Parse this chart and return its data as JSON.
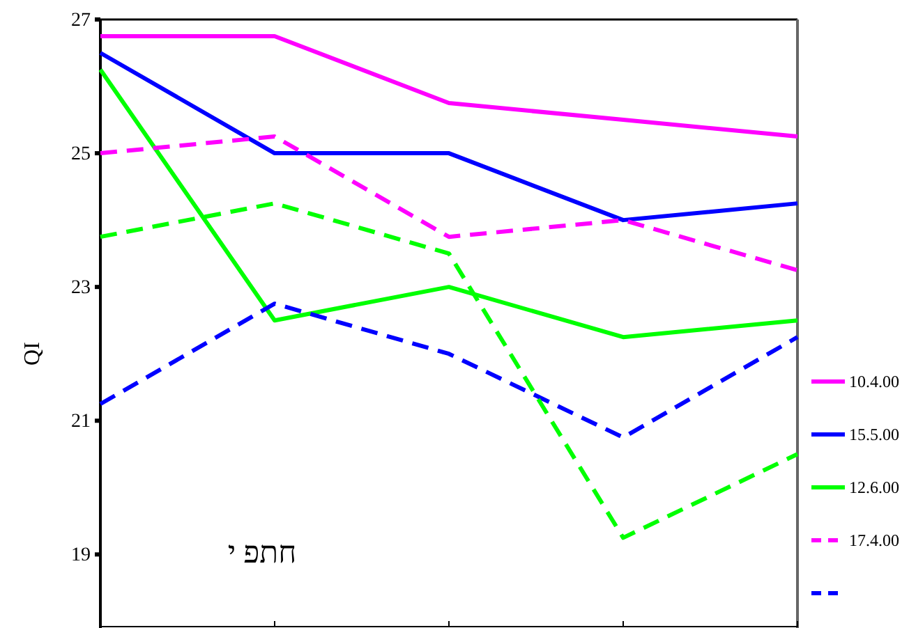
{
  "chart_data": {
    "type": "line",
    "ylabel": "QI",
    "categories": [
      null,
      null,
      null,
      null,
      null
    ],
    "ylim": [
      17.9,
      27
    ],
    "yticks": [
      19,
      21,
      23,
      25,
      27
    ],
    "tick_labels": "y",
    "grid": false,
    "legend": "right",
    "marker": "none",
    "annotations": [
      "חתפ י"
    ],
    "series": [
      {
        "name": "10.4.00",
        "color": "#ff00ff",
        "line_style": "solid",
        "values": [
          26.75,
          26.75,
          25.75,
          25.5,
          25.25
        ]
      },
      {
        "name": "15.5.00",
        "color": "#0000ff",
        "line_style": "solid",
        "values": [
          26.5,
          25,
          25,
          24,
          24.25
        ]
      },
      {
        "name": "12.6.00",
        "color": "#00ff00",
        "line_style": "solid",
        "values": [
          26.25,
          22.5,
          23,
          22.25,
          22.5
        ]
      },
      {
        "name": "17.4.00",
        "color": "#ff00ff",
        "line_style": "dashed",
        "values": [
          25,
          25.25,
          23.75,
          24,
          23.25
        ]
      },
      {
        "color": "#0000ff",
        "line_style": "dashed",
        "values": [
          21.25,
          22.75,
          22,
          20.75,
          22.25
        ]
      },
      {
        "color": "#00ff00",
        "line_style": "dashed",
        "values": [
          23.75,
          24.25,
          23.5,
          19.25,
          20.5
        ]
      }
    ]
  }
}
